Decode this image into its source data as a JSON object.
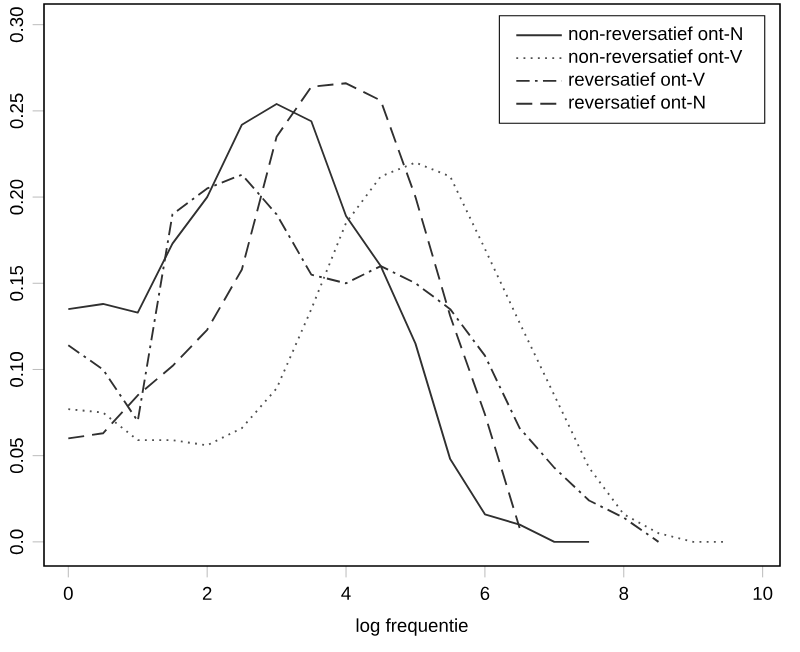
{
  "chart_data": {
    "type": "line",
    "xlabel": "log frequentie",
    "xlim": [
      -0.35,
      10.25
    ],
    "ylim": [
      -0.014,
      0.312
    ],
    "xticks": [
      0,
      2,
      4,
      6,
      8,
      10
    ],
    "yticks": [
      {
        "value": 0,
        "label": "0.0"
      },
      {
        "value": 0.05,
        "label": "0.05"
      },
      {
        "value": 0.1,
        "label": "0.10"
      },
      {
        "value": 0.15,
        "label": "0.15"
      },
      {
        "value": 0.2,
        "label": "0.20"
      },
      {
        "value": 0.25,
        "label": "0.25"
      },
      {
        "value": 0.3,
        "label": "0.30"
      }
    ],
    "legend": "top right",
    "grid": false,
    "series": [
      {
        "name": "non-reversatief ont-N",
        "color": "#303030",
        "line_style": "solid",
        "x": [
          0,
          0.5,
          1,
          1.5,
          2,
          2.5,
          3,
          3.5,
          4,
          4.5,
          5,
          5.5,
          6,
          6.5,
          7,
          7.5
        ],
        "values": [
          0.135,
          0.138,
          0.133,
          0.173,
          0.2,
          0.242,
          0.254,
          0.244,
          0.189,
          0.16,
          0.115,
          0.048,
          0.016,
          0.01,
          0,
          0
        ]
      },
      {
        "name": "non-reversatief ont-V",
        "color": "#505050",
        "line_style": "dotted",
        "x": [
          0,
          0.5,
          1,
          1.5,
          2,
          2.5,
          3,
          3.5,
          4,
          4.5,
          5,
          5.5,
          6,
          6.5,
          7,
          7.5,
          8,
          8.5,
          9,
          9.5
        ],
        "values": [
          0.077,
          0.075,
          0.059,
          0.059,
          0.056,
          0.066,
          0.089,
          0.135,
          0.185,
          0.212,
          0.22,
          0.212,
          0.17,
          0.127,
          0.085,
          0.043,
          0.016,
          0.005,
          0,
          0
        ]
      },
      {
        "name": "reversatief ont-V",
        "color": "#303030",
        "line_style": "dashdot",
        "x": [
          0,
          0.5,
          1,
          1.5,
          2,
          2.5,
          3,
          3.5,
          4,
          4.5,
          5,
          5.5,
          6,
          6.5,
          7,
          7.5,
          8,
          8.5
        ],
        "values": [
          0.114,
          0.1,
          0.07,
          0.19,
          0.205,
          0.213,
          0.19,
          0.155,
          0.15,
          0.16,
          0.15,
          0.135,
          0.108,
          0.066,
          0.043,
          0.024,
          0.014,
          0
        ]
      },
      {
        "name": "reversatief ont-N",
        "color": "#303030",
        "line_style": "dashed",
        "x": [
          0,
          0.5,
          1,
          1.5,
          2,
          2.5,
          3,
          3.5,
          4,
          4.5,
          5,
          5.5,
          6,
          6.5
        ],
        "values": [
          0.06,
          0.063,
          0.085,
          0.102,
          0.123,
          0.158,
          0.235,
          0.264,
          0.266,
          0.256,
          0.2,
          0.131,
          0.074,
          0.008
        ]
      }
    ]
  }
}
